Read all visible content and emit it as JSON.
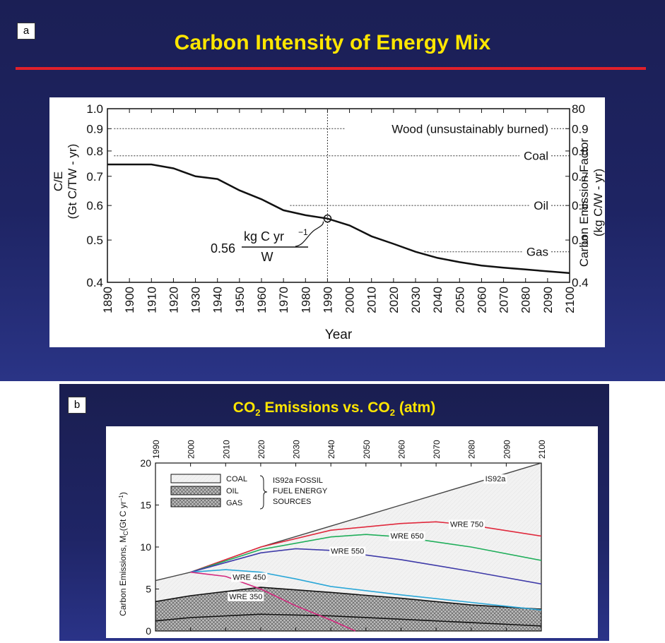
{
  "panel_a": {
    "badge": "a",
    "title": "Carbon Intensity of Energy Mix"
  },
  "panel_b": {
    "badge": "b",
    "title_parts": [
      "CO",
      "2",
      " Emissions vs. CO",
      "2",
      " (atm)"
    ]
  },
  "chart_data": [
    {
      "type": "line",
      "xlabel": "Year",
      "ylabel_left": [
        "C/E",
        "(Gt C/TW - yr)"
      ],
      "ylabel_right": [
        "Carbon Emission Factor",
        "(kg C/W - yr)"
      ],
      "x_ticks": [
        "1890",
        "1900",
        "1910",
        "1920",
        "1930",
        "1940",
        "1950",
        "1960",
        "1970",
        "1980",
        "1990",
        "2000",
        "2010",
        "2020",
        "2030",
        "2040",
        "2050",
        "2060",
        "2070",
        "2080",
        "2090",
        "2100"
      ],
      "xlim": [
        1890,
        2100
      ],
      "y_scale": "log",
      "ylim": [
        0.4,
        1.0
      ],
      "y_ticks_left": [
        "1.0",
        "0.9",
        "0.8",
        "0.7",
        "0.6",
        "0.5",
        "0.4"
      ],
      "y_ticks_right": [
        "80",
        "0.9",
        "0.8",
        "0.7",
        "0.6",
        "0.5",
        "0.4"
      ],
      "reference_lines": [
        {
          "label": "Wood (unsustainably burned)",
          "y": 0.9
        },
        {
          "label": "Coal",
          "y": 0.78
        },
        {
          "label": "Oil",
          "y": 0.6
        },
        {
          "label": "Gas",
          "y": 0.47
        }
      ],
      "marker_year": 1990,
      "annotation": {
        "coef": "0.56",
        "numerator": "kg C yr",
        "exponent": "−1",
        "denominator": "W"
      },
      "series": [
        {
          "name": "C/E",
          "x": [
            1890,
            1910,
            1920,
            1930,
            1940,
            1950,
            1960,
            1970,
            1980,
            1990,
            2000,
            2010,
            2020,
            2030,
            2040,
            2050,
            2060,
            2070,
            2080,
            2090,
            2100
          ],
          "y": [
            0.745,
            0.745,
            0.73,
            0.7,
            0.69,
            0.65,
            0.62,
            0.585,
            0.57,
            0.56,
            0.54,
            0.51,
            0.49,
            0.47,
            0.455,
            0.445,
            0.437,
            0.432,
            0.428,
            0.424,
            0.42
          ]
        }
      ]
    },
    {
      "type": "area",
      "ylabel": "Carbon Emissions, M",
      "ylabel_sub": "C",
      "ylabel_tail": "(Gt C yr",
      "ylabel_exp": "−1",
      "ylabel_close": ")",
      "x_ticks": [
        "1990",
        "2000",
        "2010",
        "2020",
        "2030",
        "2040",
        "2050",
        "2060",
        "2070",
        "2080",
        "2090",
        "2100"
      ],
      "xlim": [
        1990,
        2100
      ],
      "ylim": [
        0,
        20
      ],
      "y_ticks": [
        "0",
        "5",
        "10",
        "15",
        "20"
      ],
      "legend": [
        {
          "name": "COAL",
          "pattern": "light"
        },
        {
          "name": "OIL",
          "pattern": "dense"
        },
        {
          "name": "GAS",
          "pattern": "dense"
        }
      ],
      "legend_note": [
        "IS92a FOSSIL",
        "FUEL ENERGY",
        "SOURCES"
      ],
      "series": [
        {
          "name": "IS92a",
          "color": "#444444",
          "x": [
            1990,
            2000,
            2020,
            2040,
            2060,
            2080,
            2100
          ],
          "y": [
            6.0,
            7.0,
            10.0,
            12.5,
            15.0,
            17.5,
            20.0
          ]
        },
        {
          "name": "WRE 750",
          "color": "#e0283c",
          "x": [
            2000,
            2020,
            2040,
            2060,
            2070,
            2080,
            2100
          ],
          "y": [
            7.0,
            10.0,
            12.0,
            12.8,
            13.0,
            12.6,
            11.3
          ]
        },
        {
          "name": "WRE 650",
          "color": "#1fae5a",
          "x": [
            2000,
            2020,
            2040,
            2050,
            2060,
            2080,
            2100
          ],
          "y": [
            7.0,
            9.7,
            11.2,
            11.5,
            11.2,
            10.0,
            8.4
          ]
        },
        {
          "name": "WRE 550",
          "color": "#3e3aa8",
          "x": [
            2000,
            2020,
            2030,
            2040,
            2060,
            2080,
            2100
          ],
          "y": [
            7.0,
            9.3,
            9.8,
            9.6,
            8.5,
            7.1,
            5.6
          ]
        },
        {
          "name": "WRE 450",
          "color": "#2aa7d8",
          "x": [
            2000,
            2010,
            2020,
            2030,
            2040,
            2060,
            2080,
            2100
          ],
          "y": [
            7.0,
            7.3,
            7.0,
            6.2,
            5.3,
            4.3,
            3.4,
            2.5
          ]
        },
        {
          "name": "WRE 350",
          "color": "#d4287e",
          "x": [
            2000,
            2010,
            2020,
            2030,
            2040,
            2047
          ],
          "y": [
            7.0,
            6.5,
            5.0,
            3.0,
            1.3,
            0.0
          ]
        }
      ],
      "fossil_oil_gas_top": {
        "x": [
          1990,
          2000,
          2020,
          2040,
          2060,
          2080,
          2100
        ],
        "y": [
          3.5,
          4.2,
          5.2,
          4.6,
          3.9,
          3.1,
          2.6
        ]
      },
      "fossil_gas_top": {
        "x": [
          1990,
          2000,
          2020,
          2040,
          2060,
          2080,
          2100
        ],
        "y": [
          1.2,
          1.6,
          2.0,
          1.8,
          1.4,
          1.0,
          0.6
        ]
      }
    }
  ]
}
